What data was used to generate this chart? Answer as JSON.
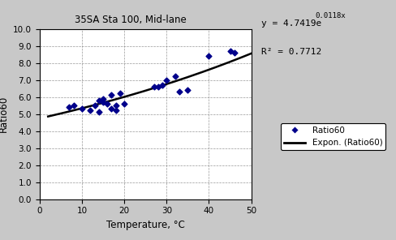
{
  "title": "35SA Sta 100, Mid-lane",
  "xlabel": "Temperature, °C",
  "ylabel": "Ratio60",
  "eq_base": "y = 4.7419e",
  "eq_exp": "0.0118x",
  "r2_text": "R² = 0.7712",
  "a": 4.7419,
  "b": 0.0118,
  "xlim": [
    0,
    50
  ],
  "ylim": [
    0.0,
    10.0
  ],
  "yticks": [
    0.0,
    1.0,
    2.0,
    3.0,
    4.0,
    5.0,
    6.0,
    7.0,
    8.0,
    9.0,
    10.0
  ],
  "xticks": [
    0,
    10,
    20,
    30,
    40,
    50
  ],
  "scatter_x": [
    7,
    8,
    10,
    12,
    13,
    14,
    14,
    15,
    15,
    16,
    17,
    17,
    18,
    18,
    19,
    20,
    27,
    28,
    29,
    30,
    32,
    33,
    35,
    40,
    45,
    46
  ],
  "scatter_y": [
    5.4,
    5.5,
    5.3,
    5.2,
    5.5,
    5.1,
    5.8,
    5.7,
    5.9,
    5.6,
    6.1,
    5.3,
    5.2,
    5.5,
    6.2,
    5.6,
    6.6,
    6.6,
    6.7,
    7.0,
    7.2,
    6.3,
    6.4,
    8.4,
    8.7,
    8.6
  ],
  "scatter_color": "#00008B",
  "line_color": "#000000",
  "bg_color": "#c8c8c8",
  "plot_bg": "#ffffff",
  "legend_label_scatter": "Ratio60",
  "legend_label_line": "Expon. (Ratio60)"
}
